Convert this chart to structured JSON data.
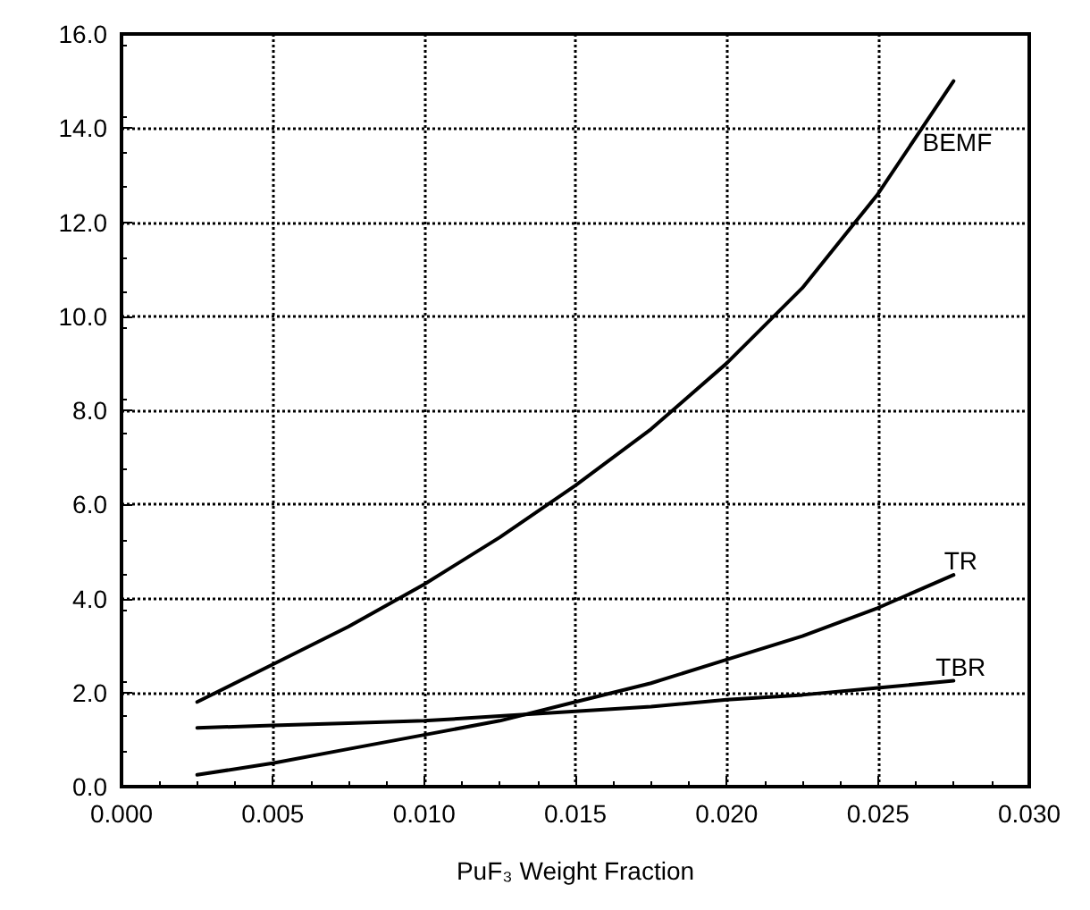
{
  "chart_data": {
    "type": "line",
    "xlabel": "PuF₃ Weight Fraction",
    "xlim": [
      0,
      0.03
    ],
    "xticks": [
      {
        "value": 0,
        "label": "0.000"
      },
      {
        "value": 0.005,
        "label": "0.005"
      },
      {
        "value": 0.01,
        "label": "0.010"
      },
      {
        "value": 0.015,
        "label": "0.015"
      },
      {
        "value": 0.02,
        "label": "0.020"
      },
      {
        "value": 0.025,
        "label": "0.025"
      },
      {
        "value": 0.03,
        "label": "0.030"
      }
    ],
    "ylim": [
      0,
      16
    ],
    "yticks": [
      {
        "value": 0,
        "label": "0.0"
      },
      {
        "value": 2,
        "label": "2.0"
      },
      {
        "value": 4,
        "label": "4.0"
      },
      {
        "value": 6,
        "label": "6.0"
      },
      {
        "value": 8,
        "label": "8.0"
      },
      {
        "value": 10,
        "label": "10.0"
      },
      {
        "value": 12,
        "label": "12.0"
      },
      {
        "value": 14,
        "label": "14.0"
      },
      {
        "value": 16,
        "label": "16.0"
      }
    ],
    "grid": true,
    "legend": false,
    "marker": "none",
    "line_style": "solid",
    "x": [
      0.0025,
      0.005,
      0.0075,
      0.01,
      0.0125,
      0.015,
      0.0175,
      0.02,
      0.0225,
      0.025,
      0.0275
    ],
    "series": [
      {
        "name": "BEMF",
        "color": "#000000",
        "values": [
          1.8,
          2.6,
          3.4,
          4.3,
          5.3,
          6.4,
          7.6,
          9.0,
          10.6,
          12.6,
          15.0
        ]
      },
      {
        "name": "TR",
        "color": "#000000",
        "values": [
          0.25,
          0.5,
          0.8,
          1.1,
          1.4,
          1.8,
          2.2,
          2.7,
          3.2,
          3.8,
          4.5
        ]
      },
      {
        "name": "TBR",
        "color": "#000000",
        "values": [
          1.25,
          1.3,
          1.35,
          1.4,
          1.5,
          1.6,
          1.7,
          1.85,
          1.95,
          2.1,
          2.25
        ]
      }
    ]
  }
}
